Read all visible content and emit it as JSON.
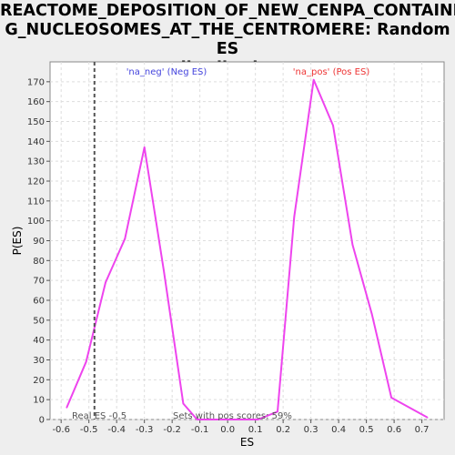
{
  "chart_data": {
    "type": "line",
    "title": "REACTOME_DEPOSITION_OF_NEW_CENPA_CONTAININ\nG_NUCLEOSOMES_AT_THE_CENTROMERE: Random ES\ndistribution",
    "xlabel": "ES",
    "ylabel": "P(ES)",
    "xlim": [
      -0.64,
      0.78
    ],
    "ylim": [
      0,
      180
    ],
    "xticks": [
      -0.6,
      -0.5,
      -0.4,
      -0.3,
      -0.2,
      -0.1,
      0.0,
      0.1,
      0.2,
      0.3,
      0.4,
      0.5,
      0.6,
      0.7
    ],
    "xtick_labels": [
      "-0.6",
      "-0.5",
      "-0.4",
      "-0.3",
      "-0.2",
      "-0.1",
      "0.0",
      "0.1",
      "0.2",
      "0.3",
      "0.4",
      "0.5",
      "0.6",
      "0.7"
    ],
    "yticks": [
      0,
      10,
      20,
      30,
      40,
      50,
      60,
      70,
      80,
      90,
      100,
      110,
      120,
      130,
      140,
      150,
      160,
      170
    ],
    "grid": true,
    "series": [
      {
        "color": "#ee44ee",
        "x": [
          -0.58,
          -0.51,
          -0.44,
          -0.37,
          -0.3,
          -0.23,
          -0.16,
          -0.11,
          0.11,
          0.18,
          0.24,
          0.31,
          0.38,
          0.45,
          0.52,
          0.59,
          0.72
        ],
        "y": [
          6,
          29,
          69,
          91,
          137,
          75,
          8,
          0,
          0,
          4,
          102,
          171,
          148,
          88,
          53,
          11,
          1
        ]
      }
    ],
    "real_es": {
      "x": -0.48,
      "color": "#555555"
    },
    "annotations": {
      "neg_label": "'na_neg' (Neg ES)",
      "neg_color": "#4444dd",
      "pos_label": "'na_pos' (Pos ES)",
      "pos_color": "#ee3333",
      "real_es_label": "Real ES -0.5",
      "pos_scores_label": "Sets with pos scores: 59%"
    }
  }
}
